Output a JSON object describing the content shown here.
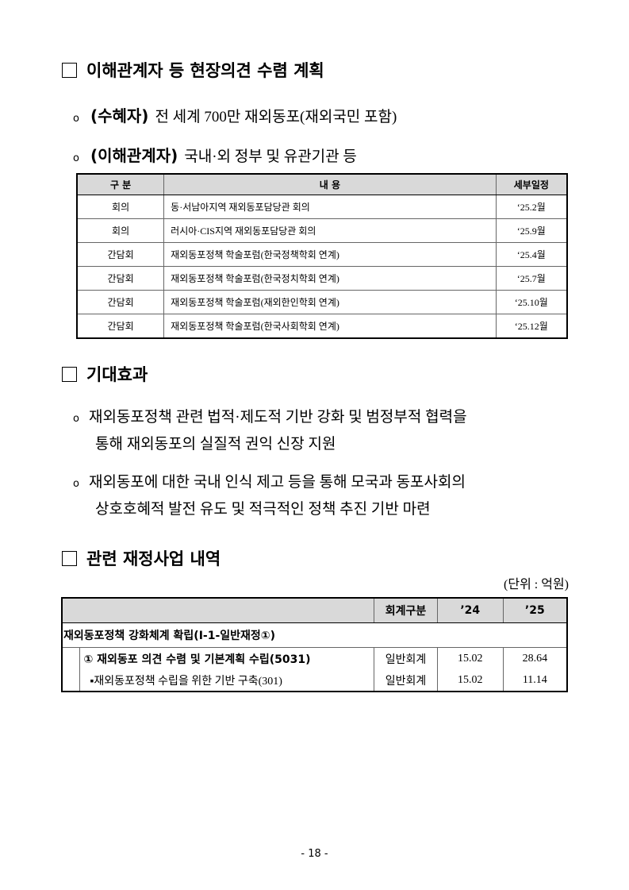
{
  "section1": {
    "title": "이해관계자 등 현장의견 수렴 계획",
    "bullets": [
      {
        "label": "(수혜자)",
        "text": "전 세계 700만 재외동포(재외국민 포함)"
      },
      {
        "label": "(이해관계자)",
        "text": "국내·외 정부 및 유관기관 등"
      }
    ],
    "table": {
      "headers": [
        "구 분",
        "내 용",
        "세부일정"
      ],
      "rows": [
        [
          "회의",
          "동·서남아지역 재외동포담당관 회의",
          "‘25.2월"
        ],
        [
          "회의",
          "러시아·CIS지역 재외동포담당관 회의",
          "‘25.9월"
        ],
        [
          "간담회",
          "재외동포정책 학술포럼(한국정책학회 연계)",
          "‘25.4월"
        ],
        [
          "간담회",
          "재외동포정책 학술포럼(한국정치학회 연계)",
          "‘25.7월"
        ],
        [
          "간담회",
          "재외동포정책 학술포럼(재외한인학회 연계)",
          "‘25.10월"
        ],
        [
          "간담회",
          "재외동포정책 학술포럼(한국사회학회 연계)",
          "‘25.12월"
        ]
      ]
    }
  },
  "section2": {
    "title": "기대효과",
    "bullets": [
      {
        "line1": "재외동포정책 관련 법적·제도적 기반 강화 및 범정부적 협력을",
        "line2": "통해 재외동포의 실질적 권익 신장 지원"
      },
      {
        "line1": "재외동포에 대한 국내 인식 제고 등을 통해 모국과 동포사회의",
        "line2": "상호호혜적 발전 유도 및 적극적인 정책 추진 기반 마련"
      }
    ]
  },
  "section3": {
    "title": "관련 재정사업 내역",
    "unit": "(단위 : 억원)",
    "table": {
      "headers": [
        "",
        "회계구분",
        "’24",
        "’25"
      ],
      "program": "재외동포정책 강화체계 확립(Ⅰ-1-일반재정①)",
      "rows": [
        {
          "name": "① 재외동포 의견 수렴 및 기본계획 수립(5031)",
          "account": "일반회계",
          "y24": "15.02",
          "y25": "28.64"
        },
        {
          "name": "▪재외동포정책 수립을 위한 기반 구축(301)",
          "account": "일반회계",
          "y24": "15.02",
          "y25": "11.14"
        }
      ]
    }
  },
  "page_number": "- 18 -"
}
